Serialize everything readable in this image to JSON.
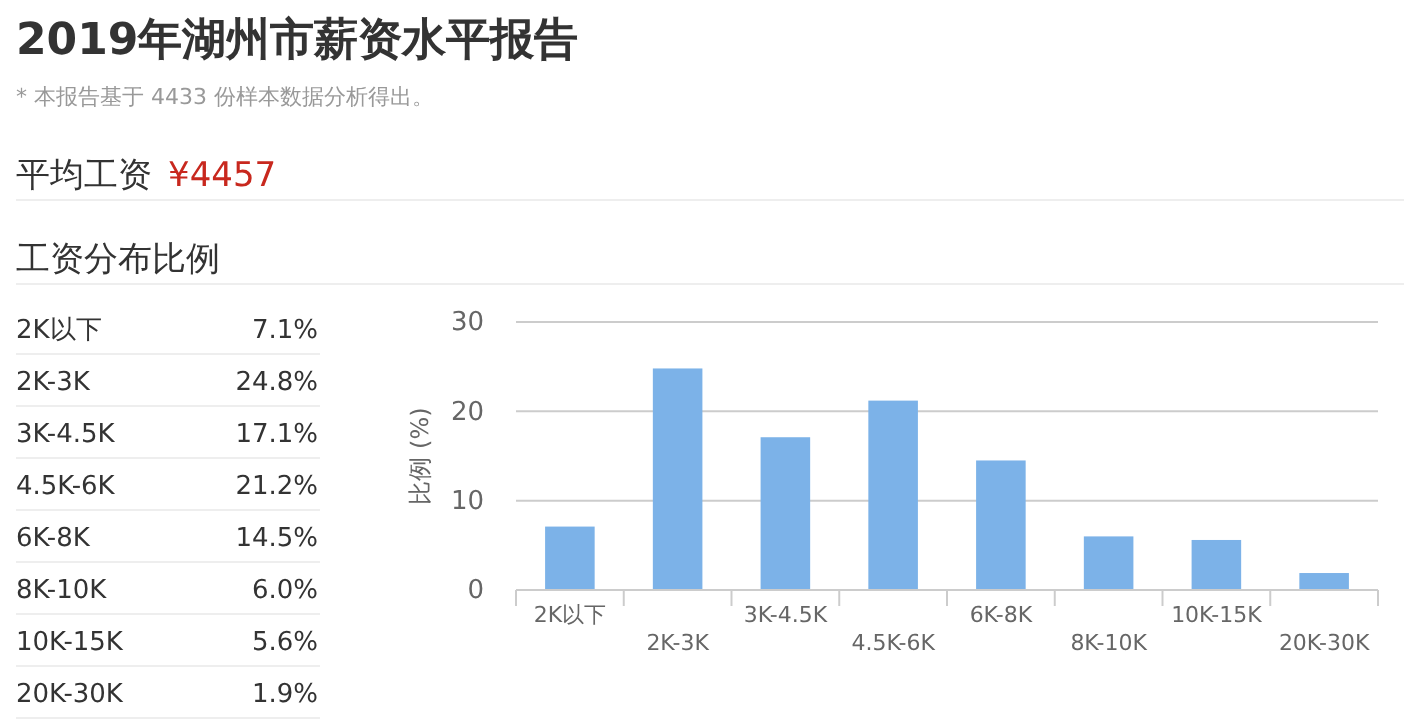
{
  "chart_data": {
    "type": "bar",
    "title": "2019年湖州市薪资水平报告",
    "subtitle": "* 本报告基于 4433 份样本数据分析得出。",
    "annotations": [
      "平均工资",
      "¥4457",
      "工资分布比例",
      "7.1%",
      "24.8%",
      "17.1%",
      "21.2%",
      "14.5%",
      "6.0%",
      "5.6%",
      "1.9%"
    ],
    "ylabel": "比例 (%)",
    "categories": [
      "2K以下",
      "2K-3K",
      "3K-4.5K",
      "4.5K-6K",
      "6K-8K",
      "8K-10K",
      "10K-15K",
      "20K-30K"
    ],
    "values": [
      7.1,
      24.8,
      17.1,
      21.2,
      14.5,
      6.0,
      5.6,
      1.9
    ],
    "color": "#7cb2e8",
    "ylim": [
      0,
      30
    ],
    "yticks": [
      0,
      10,
      20,
      30
    ],
    "grid": "y"
  }
}
